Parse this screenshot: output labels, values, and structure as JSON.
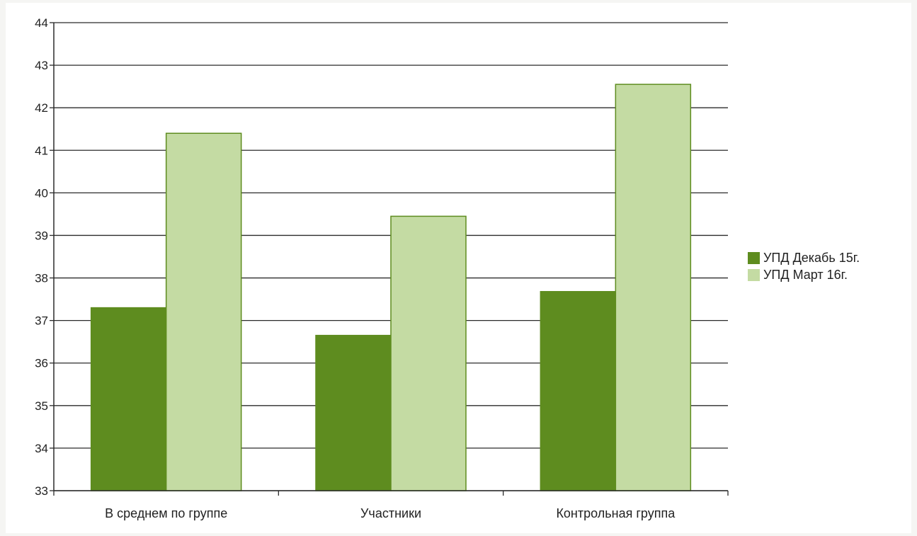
{
  "chart_data": {
    "type": "bar",
    "title": "",
    "xlabel": "",
    "ylabel": "",
    "categories": [
      "В среднем по группе",
      "Участники",
      "Контрольная группа"
    ],
    "series": [
      {
        "name": "УПД Декабь 15г.",
        "values": [
          37.3,
          36.65,
          37.68
        ],
        "color": "#5e8c1f"
      },
      {
        "name": "УПД Март 16г.",
        "values": [
          41.4,
          39.45,
          42.55
        ],
        "color": "#c4dba3"
      }
    ],
    "ylim": [
      33,
      44
    ],
    "yticks": [
      "33",
      "34",
      "35",
      "36",
      "37",
      "38",
      "39",
      "40",
      "41",
      "42",
      "43",
      "44"
    ],
    "grid": true,
    "legend_position": "right"
  }
}
